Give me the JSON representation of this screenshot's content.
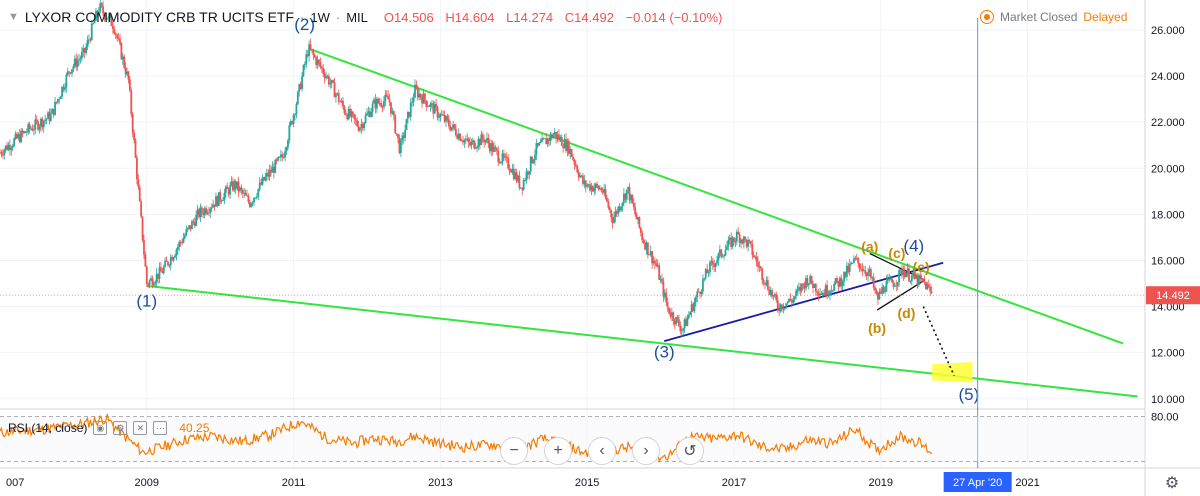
{
  "header": {
    "title": "LYXOR COMMODITY CRB TR UCITS ETF",
    "interval": "1W",
    "exchange": "MIL",
    "open": "O14.506",
    "high": "H14.604",
    "low": "L14.274",
    "close": "C14.492",
    "change": "−0.014 (−0.10%)",
    "market_status": "Market Closed",
    "delayed": "Delayed"
  },
  "price_badge": "14.492",
  "date_badge": "27 Apr '20",
  "rsi": {
    "label": "RSI (14, close)",
    "value": "40.25",
    "levels": [
      "80.00"
    ]
  },
  "toolbar": [
    "−",
    "+",
    "‹",
    "›",
    "↺"
  ],
  "colors": {
    "up": "#26a69a",
    "down": "#ef5350",
    "trendline": "#33e53c",
    "blue_line": "#1a1aa8",
    "wave_blue": "#1e4e9a",
    "wave_orange": "#c78a00",
    "rsi_line": "#f57c00",
    "target_box": "#ffff33",
    "vline": "#5b9bd5"
  },
  "chart_data": {
    "type": "candlestick",
    "title": "LYXOR COMMODITY CRB TR UCITS ETF",
    "x_ticks": [
      "007",
      "2009",
      "2011",
      "2013",
      "2015",
      "2017",
      "2019",
      "2021"
    ],
    "y_ticks": [
      "26.000",
      "24.000",
      "22.000",
      "20.000",
      "18.000",
      "16.000",
      "14.000",
      "12.000",
      "10.000"
    ],
    "ylim": [
      9.6,
      27.3
    ],
    "xlim": [
      2007.0,
      2022.6
    ],
    "last_price": 14.492,
    "price_path": [
      [
        2007.0,
        20.7
      ],
      [
        2007.4,
        21.7
      ],
      [
        2007.7,
        22.3
      ],
      [
        2007.95,
        24.3
      ],
      [
        2008.15,
        25.0
      ],
      [
        2008.35,
        27.0
      ],
      [
        2008.55,
        26.2
      ],
      [
        2008.75,
        23.8
      ],
      [
        2008.9,
        18.5
      ],
      [
        2009.0,
        15.0
      ],
      [
        2009.2,
        15.5
      ],
      [
        2009.5,
        17.0
      ],
      [
        2009.7,
        18.0
      ],
      [
        2009.95,
        18.6
      ],
      [
        2010.2,
        19.3
      ],
      [
        2010.4,
        18.5
      ],
      [
        2010.6,
        19.5
      ],
      [
        2010.85,
        20.5
      ],
      [
        2011.05,
        23.0
      ],
      [
        2011.2,
        25.2
      ],
      [
        2011.45,
        24.0
      ],
      [
        2011.7,
        22.5
      ],
      [
        2011.9,
        21.8
      ],
      [
        2012.1,
        22.8
      ],
      [
        2012.3,
        23.0
      ],
      [
        2012.45,
        20.8
      ],
      [
        2012.65,
        23.4
      ],
      [
        2012.9,
        22.6
      ],
      [
        2013.15,
        21.8
      ],
      [
        2013.4,
        21.0
      ],
      [
        2013.6,
        21.3
      ],
      [
        2013.8,
        20.5
      ],
      [
        2013.95,
        20.1
      ],
      [
        2014.1,
        19.2
      ],
      [
        2014.3,
        20.8
      ],
      [
        2014.55,
        21.5
      ],
      [
        2014.75,
        20.9
      ],
      [
        2014.95,
        19.3
      ],
      [
        2015.2,
        19.1
      ],
      [
        2015.35,
        17.8
      ],
      [
        2015.55,
        19.1
      ],
      [
        2015.75,
        17.0
      ],
      [
        2015.95,
        15.7
      ],
      [
        2016.1,
        13.9
      ],
      [
        2016.3,
        13.0
      ],
      [
        2016.5,
        14.5
      ],
      [
        2016.65,
        15.6
      ],
      [
        2016.85,
        16.4
      ],
      [
        2017.05,
        17.1
      ],
      [
        2017.2,
        16.7
      ],
      [
        2017.4,
        15.3
      ],
      [
        2017.6,
        14.0
      ],
      [
        2017.8,
        14.3
      ],
      [
        2018.0,
        15.2
      ],
      [
        2018.2,
        14.6
      ],
      [
        2018.45,
        15.1
      ],
      [
        2018.65,
        16.0
      ],
      [
        2018.85,
        15.4
      ],
      [
        2018.95,
        14.3
      ],
      [
        2019.05,
        14.9
      ],
      [
        2019.2,
        15.1
      ],
      [
        2019.3,
        15.6
      ],
      [
        2019.45,
        15.2
      ],
      [
        2019.6,
        15.0
      ],
      [
        2019.7,
        14.5
      ]
    ],
    "rsi_path": [
      [
        2007.0,
        62
      ],
      [
        2007.6,
        66
      ],
      [
        2008.15,
        72
      ],
      [
        2008.45,
        78
      ],
      [
        2008.7,
        58
      ],
      [
        2008.95,
        40
      ],
      [
        2009.2,
        46
      ],
      [
        2009.55,
        55
      ],
      [
        2009.9,
        58
      ],
      [
        2010.3,
        52
      ],
      [
        2010.7,
        60
      ],
      [
        2011.1,
        75
      ],
      [
        2011.45,
        56
      ],
      [
        2011.8,
        50
      ],
      [
        2012.1,
        56
      ],
      [
        2012.4,
        52
      ],
      [
        2012.65,
        58
      ],
      [
        2013.0,
        50
      ],
      [
        2013.3,
        46
      ],
      [
        2013.7,
        49
      ],
      [
        2014.05,
        42
      ],
      [
        2014.4,
        55
      ],
      [
        2014.7,
        48
      ],
      [
        2014.95,
        40
      ],
      [
        2015.3,
        42
      ],
      [
        2015.6,
        46
      ],
      [
        2015.85,
        34
      ],
      [
        2016.1,
        36
      ],
      [
        2016.4,
        57
      ],
      [
        2016.75,
        55
      ],
      [
        2017.05,
        60
      ],
      [
        2017.35,
        47
      ],
      [
        2017.7,
        43
      ],
      [
        2018.0,
        54
      ],
      [
        2018.35,
        50
      ],
      [
        2018.65,
        66
      ],
      [
        2018.95,
        42
      ],
      [
        2019.25,
        58
      ],
      [
        2019.5,
        52
      ],
      [
        2019.7,
        40.25
      ]
    ],
    "trendlines": [
      {
        "name": "",
        "color": "#33e53c",
        "from": [
          2011.2,
          25.2
        ],
        "to": [
          2022.3,
          12.4
        ]
      },
      {
        "name": "",
        "color": "#33e53c",
        "from": [
          2009.0,
          14.9
        ],
        "to": [
          2022.5,
          10.1
        ]
      },
      {
        "name": "",
        "color": "#1a1aa8",
        "from": [
          2016.05,
          12.5
        ],
        "to": [
          2019.85,
          15.9
        ]
      },
      {
        "name": "",
        "color": "#111111",
        "from": [
          2018.85,
          16.3
        ],
        "to": [
          2019.6,
          15.15
        ]
      },
      {
        "name": "",
        "color": "#111111",
        "from": [
          2018.95,
          13.85
        ],
        "to": [
          2019.6,
          15.15
        ]
      }
    ],
    "projection": {
      "from": [
        2019.58,
        14.0
      ],
      "to": [
        2020.0,
        11.0
      ]
    },
    "target_zone": {
      "x": [
        2019.7,
        2020.25
      ],
      "y": [
        10.7,
        11.7
      ]
    },
    "vertical_line_x": 2020.32,
    "annotations": [
      {
        "text": "(1)",
        "x": 2009.0,
        "y": 14.0,
        "group": "wave_blue"
      },
      {
        "text": "(2)",
        "x": 2011.15,
        "y": 26.0,
        "group": "wave_blue"
      },
      {
        "text": "(3)",
        "x": 2016.05,
        "y": 11.8,
        "group": "wave_blue"
      },
      {
        "text": "(4)",
        "x": 2019.45,
        "y": 16.4,
        "group": "wave_blue"
      },
      {
        "text": "(5)",
        "x": 2020.2,
        "y": 9.95,
        "group": "wave_blue"
      },
      {
        "text": "(a)",
        "x": 2018.85,
        "y": 16.4,
        "group": "wave_orange"
      },
      {
        "text": "(b)",
        "x": 2018.95,
        "y": 12.85,
        "group": "wave_orange"
      },
      {
        "text": "(c)",
        "x": 2019.22,
        "y": 16.1,
        "group": "wave_orange"
      },
      {
        "text": "(d)",
        "x": 2019.35,
        "y": 13.5,
        "group": "wave_orange"
      },
      {
        "text": "(e)",
        "x": 2019.55,
        "y": 15.5,
        "group": "wave_orange"
      }
    ]
  }
}
